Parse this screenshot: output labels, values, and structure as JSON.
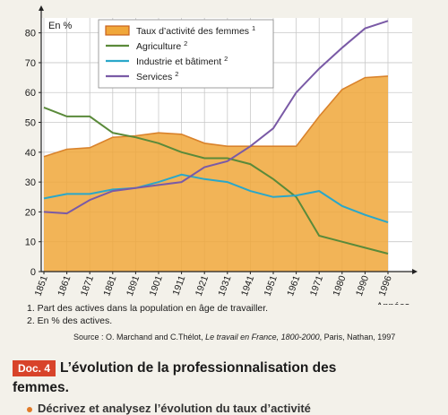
{
  "chart_data": {
    "type": "line",
    "ylabel": "En %",
    "xlabel": "Années",
    "ylim": [
      0,
      85
    ],
    "yticks": [
      0,
      10,
      20,
      30,
      40,
      50,
      60,
      70,
      80
    ],
    "categories": [
      "1851",
      "1861",
      "1871",
      "1881",
      "1891",
      "1901",
      "1911",
      "1921",
      "1931",
      "1941",
      "1951",
      "1961",
      "1971",
      "1980",
      "1990",
      "1996"
    ],
    "legend_position": "top-right",
    "grid": true,
    "series": [
      {
        "name": "Taux d’activité des femmes",
        "sup": "1",
        "style": "area",
        "color": "#f0a73a",
        "values": [
          38.5,
          41,
          41.5,
          45,
          45.5,
          46.5,
          46,
          43,
          42,
          42,
          42,
          42,
          52,
          61,
          65,
          65.5
        ]
      },
      {
        "name": "Agriculture",
        "sup": "2",
        "style": "line",
        "color": "#5a8a3a",
        "values": [
          55,
          52,
          52,
          46.5,
          45,
          43,
          40,
          38,
          38,
          36,
          31,
          25,
          12,
          10,
          8,
          6
        ]
      },
      {
        "name": "Industrie et bâtiment",
        "sup": "2",
        "style": "line",
        "color": "#2aa7c9",
        "values": [
          24.5,
          26,
          26,
          27.5,
          28,
          30,
          32.5,
          31,
          30,
          27,
          25,
          25.5,
          27,
          22,
          19,
          16.5
        ]
      },
      {
        "name": "Services",
        "sup": "2",
        "style": "line",
        "color": "#7a5aa6",
        "values": [
          20,
          19.5,
          24,
          27,
          28,
          29,
          30,
          35,
          37,
          42,
          48,
          60,
          68,
          75,
          81.5,
          84
        ]
      }
    ]
  },
  "notes": {
    "note1": "1. Part des actives dans la population en âge de travailler.",
    "note2": "2. En % des actives.",
    "source_prefix": "Source : O. Marchand and C.Thélot, ",
    "source_title": "Le travail en France, 1800-2000",
    "source_suffix": ", Paris, Nathan, 1997"
  },
  "doc": {
    "badge": "Doc. 4",
    "title_line1": "L’évolution de la professionnalisation des",
    "title_line2": "femmes."
  },
  "cut_text": "Décrivez et analysez l’évolution du taux d’activité"
}
